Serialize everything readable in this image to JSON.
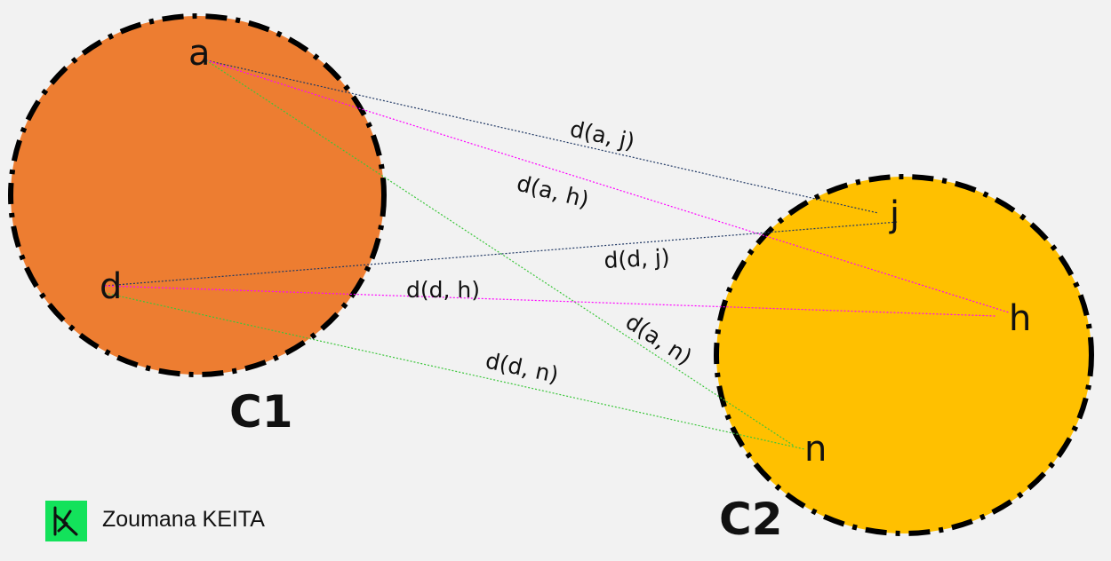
{
  "clusters": [
    {
      "id": "c1",
      "label": "C1",
      "fill": "#ed7d31"
    },
    {
      "id": "c2",
      "label": "C2",
      "fill": "#ffc000"
    }
  ],
  "points": [
    {
      "id": "a",
      "label": "a"
    },
    {
      "id": "d",
      "label": "d"
    },
    {
      "id": "j",
      "label": "j"
    },
    {
      "id": "h",
      "label": "h"
    },
    {
      "id": "n",
      "label": "n"
    }
  ],
  "distances": [
    {
      "id": "aj",
      "label": "d(a, j)",
      "color": "#203864"
    },
    {
      "id": "ah",
      "label": "d(a, h)",
      "color": "#ff00ff"
    },
    {
      "id": "an",
      "label": "d(a, n)",
      "color": "#3cc63c"
    },
    {
      "id": "dj",
      "label": "d(d, j)",
      "color": "#203864"
    },
    {
      "id": "dh",
      "label": "d(d, h)",
      "color": "#ff00ff"
    },
    {
      "id": "dn",
      "label": "d(d, n)",
      "color": "#3cc63c"
    }
  ],
  "footer": {
    "author": "Zoumana KEITA",
    "logo_color": "#13e25b"
  }
}
